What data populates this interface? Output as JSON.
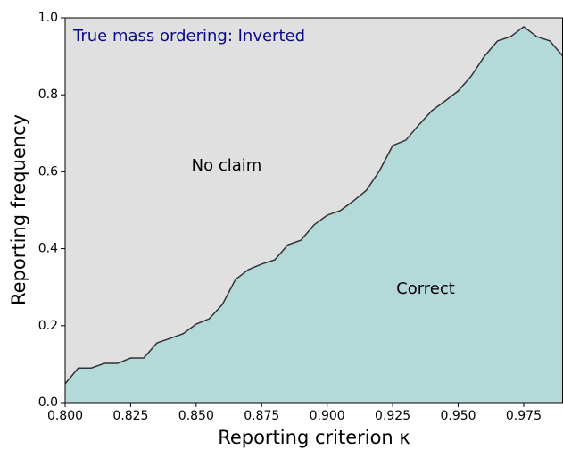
{
  "chart_data": {
    "type": "area",
    "x": [
      0.8,
      0.805,
      0.81,
      0.815,
      0.82,
      0.825,
      0.83,
      0.835,
      0.84,
      0.845,
      0.85,
      0.855,
      0.86,
      0.865,
      0.87,
      0.875,
      0.88,
      0.885,
      0.89,
      0.895,
      0.9,
      0.905,
      0.91,
      0.915,
      0.92,
      0.925,
      0.93,
      0.935,
      0.94,
      0.945,
      0.95,
      0.955,
      0.96,
      0.965,
      0.97,
      0.975,
      0.98,
      0.985,
      0.99
    ],
    "values": [
      0.049,
      0.09,
      0.09,
      0.102,
      0.102,
      0.116,
      0.116,
      0.155,
      0.167,
      0.179,
      0.204,
      0.218,
      0.255,
      0.32,
      0.346,
      0.36,
      0.371,
      0.41,
      0.422,
      0.462,
      0.487,
      0.499,
      0.524,
      0.552,
      0.603,
      0.668,
      0.682,
      0.722,
      0.759,
      0.784,
      0.81,
      0.849,
      0.9,
      0.94,
      0.951,
      0.977,
      0.951,
      0.94,
      0.9
    ],
    "color": "#b3d9d8",
    "line_color": "#333333",
    "background": "#e0e0e0",
    "xlabel": "Reporting criterion κ",
    "ylabel": "Reporting frequency",
    "annotations": [
      "True mass ordering: Inverted",
      "No claim",
      "Correct"
    ],
    "xlim": [
      0.8,
      0.99
    ],
    "xticks": [
      {
        "value": 0.8,
        "label": "0.800"
      },
      0.825,
      {
        "value": 0.85,
        "label": "0.850"
      },
      0.875,
      {
        "value": 0.9,
        "label": "0.900"
      },
      0.925,
      {
        "value": 0.95,
        "label": "0.950"
      },
      0.975
    ],
    "ylim": [
      0,
      1
    ],
    "yticks": [
      {
        "value": 0,
        "label": "0.0"
      },
      0.2,
      0.4,
      0.6,
      0.8,
      {
        "value": 1,
        "label": "1.0"
      }
    ]
  }
}
